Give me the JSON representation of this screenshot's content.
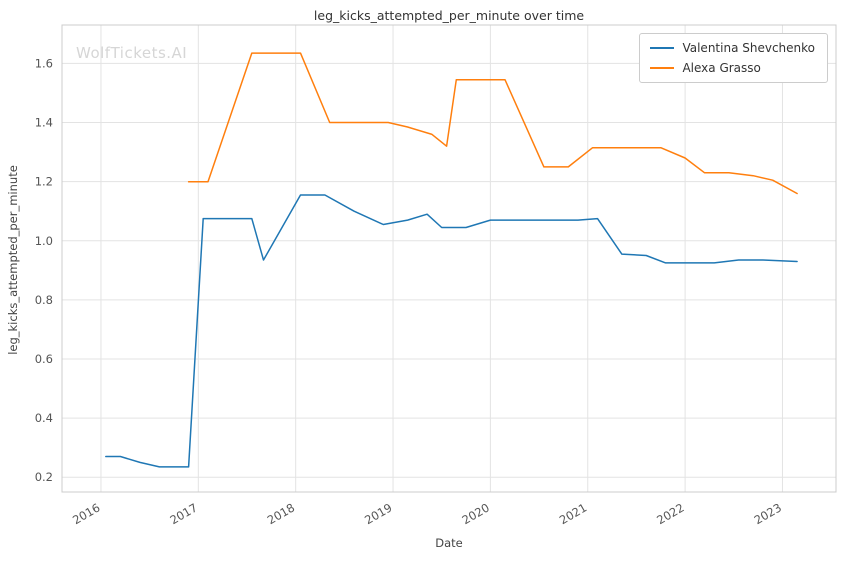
{
  "watermark": "WolfTickets.AI",
  "chart_data": {
    "type": "line",
    "title": "leg_kicks_attempted_per_minute over time",
    "xlabel": "Date",
    "ylabel": "leg_kicks_attempted_per_minute",
    "xlim": [
      2015.6,
      2023.55
    ],
    "ylim": [
      0.15,
      1.73
    ],
    "x_ticks": [
      2016,
      2017,
      2018,
      2019,
      2020,
      2021,
      2022,
      2023
    ],
    "y_ticks": [
      0.2,
      0.4,
      0.6,
      0.8,
      1.0,
      1.2,
      1.4,
      1.6
    ],
    "grid": true,
    "legend_position": "upper right",
    "colors": {
      "grid": "#e3e3e3",
      "spine": "#cccccc",
      "tick_text": "#555555"
    },
    "series": [
      {
        "name": "Valentina Shevchenko",
        "color": "#1f77b4",
        "x": [
          2016.05,
          2016.2,
          2016.4,
          2016.6,
          2016.9,
          2017.05,
          2017.3,
          2017.55,
          2017.67,
          2018.05,
          2018.3,
          2018.6,
          2018.9,
          2019.15,
          2019.35,
          2019.5,
          2019.75,
          2020.0,
          2020.3,
          2020.6,
          2020.9,
          2021.1,
          2021.35,
          2021.6,
          2021.8,
          2022.05,
          2022.3,
          2022.55,
          2022.8,
          2023.15
        ],
        "y": [
          0.27,
          0.27,
          0.25,
          0.235,
          0.235,
          1.075,
          1.075,
          1.075,
          0.935,
          1.155,
          1.155,
          1.1,
          1.055,
          1.07,
          1.09,
          1.045,
          1.045,
          1.07,
          1.07,
          1.07,
          1.07,
          1.075,
          0.955,
          0.95,
          0.925,
          0.925,
          0.925,
          0.935,
          0.935,
          0.93
        ]
      },
      {
        "name": "Alexa Grasso",
        "color": "#ff7f0e",
        "x": [
          2016.9,
          2017.1,
          2017.55,
          2017.8,
          2018.05,
          2018.35,
          2018.65,
          2018.95,
          2019.15,
          2019.4,
          2019.55,
          2019.65,
          2019.9,
          2020.15,
          2020.55,
          2020.8,
          2021.05,
          2021.3,
          2021.55,
          2021.75,
          2022.0,
          2022.2,
          2022.45,
          2022.7,
          2022.9,
          2023.15
        ],
        "y": [
          1.2,
          1.2,
          1.635,
          1.635,
          1.635,
          1.4,
          1.4,
          1.4,
          1.385,
          1.36,
          1.32,
          1.545,
          1.545,
          1.545,
          1.25,
          1.25,
          1.315,
          1.315,
          1.315,
          1.315,
          1.28,
          1.23,
          1.23,
          1.22,
          1.205,
          1.16
        ]
      }
    ]
  }
}
